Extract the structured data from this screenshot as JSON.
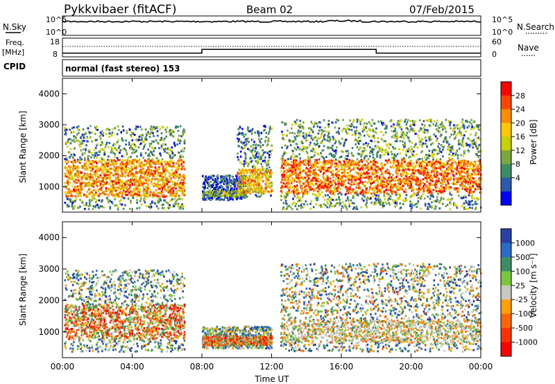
{
  "header": {
    "site": "Pykkvibaer (fitACF)",
    "beam": "Beam 02",
    "date": "07/Feb/2015"
  },
  "panels": {
    "nsky": {
      "label": "N.Sky",
      "right_label": "N.Search",
      "left_ticks": [
        "10^5",
        "10^0"
      ],
      "right_ticks": [
        "10^5",
        "10^0"
      ]
    },
    "freq": {
      "label_line1": "Freq.",
      "label_line2": "[MHz]",
      "right_label": "Nave",
      "left_ticks": [
        "18",
        "8"
      ],
      "right_ticks": [
        "60",
        "0"
      ],
      "frequency_mhz": [
        {
          "t": 0,
          "v": 10
        },
        {
          "t": 8,
          "v": 10
        },
        {
          "t": 8,
          "v": 12
        },
        {
          "t": 18,
          "v": 12
        },
        {
          "t": 18,
          "v": 10
        },
        {
          "t": 24,
          "v": 10
        }
      ],
      "nave_level": 12
    },
    "cpid": {
      "label": "CPID",
      "text": "normal (fast stereo) 153"
    }
  },
  "chart_data": [
    {
      "type": "heatmap",
      "parameter": "Power",
      "ylabel": "Slant Range [km]",
      "colorbar_label": "Power [dB]",
      "y_ticks": [
        "4000",
        "3000",
        "2000",
        "1000"
      ],
      "ylim": [
        180,
        4500
      ],
      "xlim": [
        0,
        24
      ],
      "colorbar_ticks": [
        "28",
        "24",
        "20",
        "16",
        "12",
        "8",
        "4"
      ],
      "colorbar_colors": [
        "#ff0000",
        "#ff4400",
        "#ff8c00",
        "#ffc800",
        "#c8d200",
        "#7aa83c",
        "#3c8c64",
        "#2a5aa8",
        "#0000ff"
      ],
      "regions": [
        {
          "t0": 0.1,
          "t1": 7.0,
          "r0": 300,
          "r1": 3000,
          "core": [
            700,
            1900
          ],
          "level": 0.7
        },
        {
          "t0": 8.0,
          "t1": 10.5,
          "r0": 600,
          "r1": 1400,
          "core": [
            700,
            900
          ],
          "level": 0.35
        },
        {
          "t0": 10.0,
          "t1": 12.0,
          "r0": 700,
          "r1": 3000,
          "core": [
            800,
            1600
          ],
          "level": 0.6
        },
        {
          "t0": 12.5,
          "t1": 24.0,
          "r0": 300,
          "r1": 3200,
          "core": [
            800,
            1900
          ],
          "level": 0.75
        }
      ]
    },
    {
      "type": "heatmap",
      "parameter": "Velocity",
      "ylabel": "Slant Range [km]",
      "colorbar_label": "Velocity [m s⁻¹]",
      "xlabel": "Time UT",
      "y_ticks": [
        "4000",
        "3000",
        "2000",
        "1000"
      ],
      "ylim": [
        180,
        4500
      ],
      "xlim": [
        0,
        24
      ],
      "x_ticks": [
        "00:00",
        "04:00",
        "08:00",
        "12:00",
        "16:00",
        "20:00",
        "00:00"
      ],
      "colorbar_ticks": [
        "1000",
        "500",
        "100",
        "25",
        "-25",
        "-100",
        "-500",
        "-1000"
      ],
      "colorbar_colors": [
        "#2840a8",
        "#2a6ac8",
        "#3c8c64",
        "#7ac83c",
        "#c8c8c0",
        "#ffa000",
        "#ff6400",
        "#ff3000",
        "#ff0000"
      ],
      "regions": [
        {
          "t0": 0.1,
          "t1": 7.0,
          "r0": 400,
          "r1": 3000,
          "core": [
            800,
            1900
          ],
          "mix": "neg"
        },
        {
          "t0": 8.0,
          "t1": 12.0,
          "r0": 500,
          "r1": 1200,
          "core": [
            600,
            900
          ],
          "mix": "neg"
        },
        {
          "t0": 12.5,
          "t1": 24.0,
          "r0": 400,
          "r1": 3200,
          "core": [
            700,
            1400
          ],
          "mix": "mixed"
        }
      ]
    }
  ]
}
